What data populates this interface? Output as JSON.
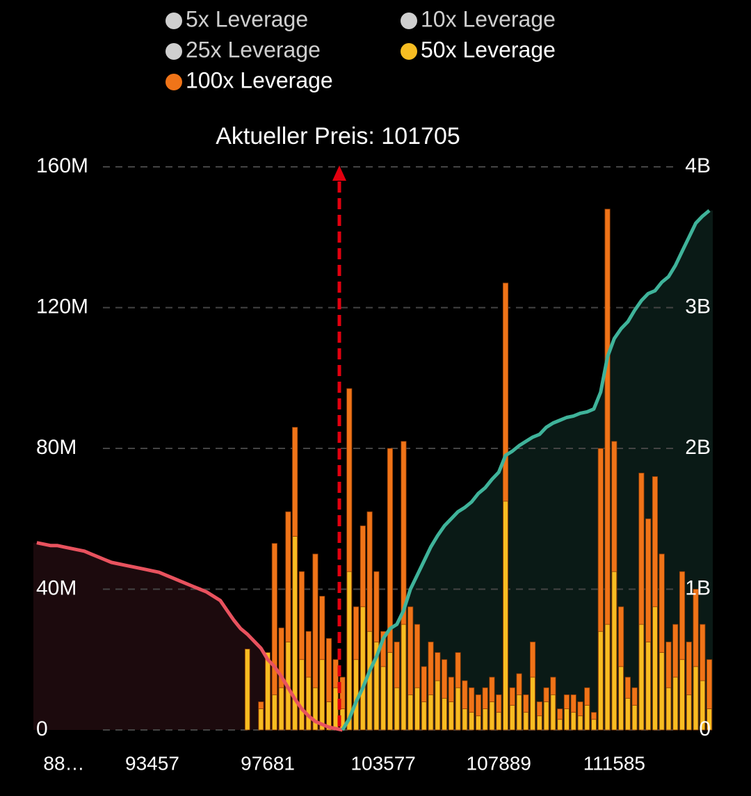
{
  "chart_data": {
    "type": "bar",
    "annotation": "Aktueller Preis: 101705",
    "series": [
      {
        "name": "5x Leverage",
        "color": "#cccccc",
        "visible": false
      },
      {
        "name": "10x Leverage",
        "color": "#cccccc",
        "visible": false
      },
      {
        "name": "25x Leverage",
        "color": "#cccccc",
        "visible": false
      },
      {
        "name": "50x Leverage",
        "color": "#f7bd22",
        "visible": true,
        "values": [
          0,
          0,
          0,
          0,
          0,
          0,
          0,
          0,
          0,
          0,
          0,
          0,
          0,
          0,
          0,
          0,
          0,
          0,
          0,
          0,
          0,
          0,
          0,
          0,
          0,
          0,
          0,
          0,
          0,
          0,
          0,
          23,
          0,
          6,
          22,
          10,
          12,
          25,
          55,
          20,
          15,
          12,
          20,
          8,
          12,
          6,
          45,
          20,
          35,
          28,
          25,
          18,
          22,
          12,
          30,
          10,
          12,
          8,
          10,
          14,
          9,
          8,
          12,
          6,
          5,
          4,
          6,
          8,
          5,
          65,
          7,
          10,
          5,
          15,
          4,
          8,
          10,
          3,
          6,
          5,
          4,
          7,
          3,
          28,
          30,
          45,
          18,
          9,
          7,
          30,
          25,
          35,
          22,
          12,
          15,
          20,
          10,
          18,
          14,
          6
        ]
      },
      {
        "name": "100x Leverage",
        "color": "#f07418",
        "visible": true,
        "values": [
          0,
          0,
          0,
          0,
          0,
          0,
          0,
          0,
          0,
          0,
          0,
          0,
          0,
          0,
          0,
          0,
          0,
          0,
          0,
          0,
          0,
          0,
          0,
          0,
          0,
          0,
          0,
          0,
          0,
          0,
          0,
          0,
          0,
          8,
          20,
          53,
          29,
          62,
          86,
          45,
          28,
          50,
          38,
          26,
          20,
          15,
          97,
          35,
          58,
          62,
          45,
          28,
          80,
          25,
          82,
          35,
          30,
          18,
          25,
          22,
          20,
          15,
          22,
          14,
          12,
          10,
          12,
          15,
          10,
          127,
          12,
          16,
          10,
          25,
          8,
          12,
          15,
          6,
          10,
          10,
          8,
          12,
          5,
          80,
          148,
          82,
          35,
          15,
          12,
          73,
          60,
          72,
          50,
          25,
          30,
          45,
          25,
          40,
          30,
          20
        ]
      }
    ],
    "lines": [
      {
        "color": "#e8525e",
        "fill": "#1c0a0d",
        "axis": "y2",
        "values": [
          1.33,
          1.32,
          1.31,
          1.31,
          1.3,
          1.29,
          1.28,
          1.27,
          1.25,
          1.23,
          1.21,
          1.19,
          1.18,
          1.17,
          1.16,
          1.15,
          1.14,
          1.13,
          1.12,
          1.1,
          1.08,
          1.06,
          1.04,
          1.02,
          1.0,
          0.98,
          0.95,
          0.92,
          0.85,
          0.78,
          0.72,
          0.68,
          0.63,
          0.58,
          0.5,
          0.45,
          0.38,
          0.3,
          0.22,
          0.15,
          0.1,
          0.06,
          0.04,
          0.02,
          0.01,
          0,
          null,
          null,
          null,
          null,
          null,
          null,
          null,
          null,
          null,
          null,
          null,
          null,
          null,
          null,
          null,
          null,
          null,
          null,
          null,
          null,
          null,
          null,
          null,
          null,
          null,
          null,
          null,
          null,
          null,
          null,
          null,
          null,
          null,
          null,
          null,
          null,
          null,
          null,
          null,
          null,
          null,
          null,
          null,
          null,
          null,
          null,
          null,
          null,
          null,
          null,
          null,
          null,
          null,
          null
        ]
      },
      {
        "color": "#3fb39a",
        "fill": "#0a1a16",
        "axis": "y2",
        "values": [
          null,
          null,
          null,
          null,
          null,
          null,
          null,
          null,
          null,
          null,
          null,
          null,
          null,
          null,
          null,
          null,
          null,
          null,
          null,
          null,
          null,
          null,
          null,
          null,
          null,
          null,
          null,
          null,
          null,
          null,
          null,
          null,
          null,
          null,
          null,
          null,
          null,
          null,
          null,
          null,
          null,
          null,
          null,
          null,
          null,
          0,
          0.08,
          0.2,
          0.3,
          0.42,
          0.52,
          0.65,
          0.72,
          0.75,
          0.85,
          1.0,
          1.1,
          1.2,
          1.3,
          1.38,
          1.45,
          1.5,
          1.55,
          1.58,
          1.62,
          1.68,
          1.72,
          1.78,
          1.83,
          1.95,
          1.98,
          2.02,
          2.05,
          2.08,
          2.1,
          2.15,
          2.18,
          2.2,
          2.22,
          2.23,
          2.25,
          2.26,
          2.28,
          2.4,
          2.65,
          2.78,
          2.85,
          2.9,
          2.98,
          3.05,
          3.1,
          3.12,
          3.18,
          3.22,
          3.3,
          3.4,
          3.5,
          3.6,
          3.65,
          3.69
        ]
      }
    ],
    "categories": [
      null,
      null,
      null,
      null,
      "88…",
      null,
      null,
      null,
      null,
      null,
      null,
      null,
      null,
      null,
      null,
      null,
      null,
      "93457",
      null,
      null,
      null,
      null,
      null,
      null,
      null,
      null,
      null,
      null,
      null,
      null,
      null,
      null,
      null,
      null,
      "97681",
      null,
      null,
      null,
      null,
      null,
      null,
      null,
      null,
      null,
      null,
      null,
      null,
      null,
      null,
      null,
      null,
      "103577",
      null,
      null,
      null,
      null,
      null,
      null,
      null,
      null,
      null,
      null,
      null,
      null,
      null,
      null,
      null,
      null,
      "107889",
      null,
      null,
      null,
      null,
      null,
      null,
      null,
      null,
      null,
      null,
      null,
      null,
      null,
      null,
      null,
      null,
      "111585",
      null,
      null,
      null,
      null,
      null,
      null,
      null,
      null,
      null,
      null,
      null,
      null,
      null,
      null
    ],
    "ylim": [
      0,
      160
    ],
    "yticks": [
      {
        "value": 0,
        "label": "0"
      },
      {
        "value": 40,
        "label": "40M"
      },
      {
        "value": 80,
        "label": "80M"
      },
      {
        "value": 120,
        "label": "120M"
      },
      {
        "value": 160,
        "label": "160M"
      }
    ],
    "y2lim": [
      0,
      4
    ],
    "y2ticks": [
      {
        "value": 0,
        "label": "0"
      },
      {
        "value": 1,
        "label": "1B"
      },
      {
        "value": 2,
        "label": "2B"
      },
      {
        "value": 3,
        "label": "3B"
      },
      {
        "value": 4,
        "label": "4B"
      }
    ],
    "grid": true
  }
}
